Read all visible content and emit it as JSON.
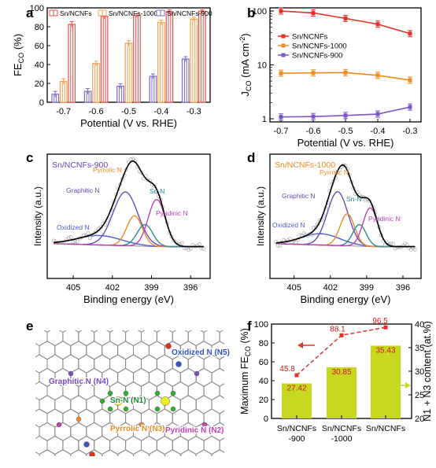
{
  "chart_data": [
    {
      "panel": "a",
      "type": "bar",
      "ylabel": "FE",
      "ylabel_sub": "CO",
      "ylabel_unit": "(%)",
      "xlabel": "Potential (V vs. RHE)",
      "categories": [
        "-0.7",
        "-0.6",
        "-0.5",
        "-0.4",
        "-0.3"
      ],
      "ylim": [
        0,
        100
      ],
      "yticks": [
        "0",
        "20",
        "40",
        "60",
        "80",
        "100"
      ],
      "legend_position": "top",
      "series": [
        {
          "name": "Sn/NCNFs-900",
          "color": "#7b68c8",
          "values": [
            8.5,
            11.5,
            17,
            27.5,
            45.8
          ],
          "errors": [
            3,
            3,
            2.5,
            2.5,
            2.5
          ]
        },
        {
          "name": "Sn/NCNFs-1000",
          "color": "#f0a050",
          "values": [
            22,
            41,
            62.5,
            84.5,
            88.1
          ],
          "errors": [
            3,
            2.5,
            3,
            2.5,
            2
          ]
        },
        {
          "name": "Sn/NCNFs",
          "color": "#e8504a",
          "values": [
            82.5,
            91,
            92,
            96,
            96.5
          ],
          "errors": [
            3,
            2.5,
            2,
            2,
            1.5
          ]
        }
      ]
    },
    {
      "panel": "b",
      "type": "line",
      "ylabel": "J",
      "ylabel_sub": "CO",
      "ylabel_unit": "(mA cm",
      "ylabel_sup": "-2",
      "ylabel_close": ")",
      "xlabel": "Potential (V vs. RHE)",
      "x": [
        -0.7,
        -0.6,
        -0.5,
        -0.4,
        -0.3
      ],
      "xticks": [
        "-0.7",
        "-0.6",
        "-0.5",
        "-0.4",
        "-0.3"
      ],
      "ylim": [
        1,
        100
      ],
      "yscale": "log",
      "yticks": [
        "1",
        "10",
        "100"
      ],
      "legend_position": "middle-left",
      "series": [
        {
          "name": "Sn/NCNFs",
          "color": "#e8302a",
          "values": [
            100,
            92,
            73,
            57,
            38
          ],
          "errors": [
            0.12,
            0.1,
            0.1,
            0.08,
            0.1
          ]
        },
        {
          "name": "Sn/NCNFs-1000",
          "color": "#f08a20",
          "values": [
            7,
            7.1,
            7.2,
            6.4,
            5.2
          ],
          "errors": [
            0.1,
            0.1,
            0.1,
            0.08,
            0.08
          ]
        },
        {
          "name": "Sn/NCNFs-900",
          "color": "#7b55c8",
          "values": [
            1.08,
            1.1,
            1.15,
            1.22,
            1.65
          ],
          "errors": [
            0.05,
            0.05,
            0.05,
            0.06,
            0.07
          ]
        }
      ]
    },
    {
      "panel": "c",
      "type": "line",
      "sample_label": "Sn/NCNFs-900",
      "ylabel": "Intensity (a.u.)",
      "xlabel": "Binding energy (eV)",
      "xlim": [
        407,
        394.5
      ],
      "xticks": [
        "405",
        "402",
        "399",
        "396"
      ],
      "peaks": [
        {
          "name": "Oxidized N",
          "center": 403.0,
          "height": 0.1,
          "width": 1.7,
          "color": "#4a5fd8"
        },
        {
          "name": "Graphitic N",
          "center": 401.0,
          "height": 0.57,
          "width": 0.95,
          "color": "#6a48c0"
        },
        {
          "name": "Pyrrolic N",
          "center": 400.3,
          "height": 0.32,
          "width": 0.6,
          "color": "#f08a20"
        },
        {
          "name": "Sn-N",
          "center": 399.5,
          "height": 0.23,
          "width": 0.6,
          "color": "#2a8a9a"
        },
        {
          "name": "Pyridinic N",
          "center": 398.6,
          "height": 0.5,
          "width": 0.65,
          "color": "#c040b0"
        }
      ]
    },
    {
      "panel": "d",
      "type": "line",
      "sample_label": "Sn/NCNFs-1000",
      "ylabel": "Intensity (a.u.)",
      "xlabel": "Binding energy (eV)",
      "xlim": [
        407,
        394.5
      ],
      "xticks": [
        "405",
        "402",
        "399",
        "396"
      ],
      "peaks": [
        {
          "name": "Oxidized N",
          "center": 402.8,
          "height": 0.12,
          "width": 1.6,
          "color": "#4a5fd8"
        },
        {
          "name": "Graphitic N",
          "center": 401.4,
          "height": 0.57,
          "width": 0.85,
          "color": "#6a48c0"
        },
        {
          "name": "Pyrrolic N",
          "center": 400.6,
          "height": 0.34,
          "width": 0.6,
          "color": "#f08a20"
        },
        {
          "name": "Sn-N",
          "center": 399.6,
          "height": 0.23,
          "width": 0.55,
          "color": "#2a8a9a"
        },
        {
          "name": "Pyridinic N",
          "center": 398.7,
          "height": 0.41,
          "width": 0.6,
          "color": "#c040b0"
        }
      ]
    },
    {
      "panel": "f",
      "type": "bar",
      "ylabel": "Maximum FE",
      "ylabel_sub": "CO",
      "ylabel_unit": "(%)",
      "ylabel_right": "N1 + N3 content (at.%)",
      "categories": [
        [
          "Sn/NCNFs",
          "-900"
        ],
        [
          "Sn/NCNFs",
          "-1000"
        ],
        [
          "Sn/NCNFs"
        ]
      ],
      "ylim": [
        0,
        100
      ],
      "ylim_right": [
        20,
        40
      ],
      "yticks": [
        "0",
        "20",
        "40",
        "60",
        "80",
        "100"
      ],
      "yticks_right": [
        "20",
        "25",
        "30",
        "35",
        "40"
      ],
      "bar_color": "#c8d820",
      "content_values": [
        27.42,
        30.85,
        35.43
      ],
      "content_labels": [
        "27.42",
        "30.85",
        "35.43"
      ],
      "fe_values": [
        45.8,
        88.1,
        96.5
      ],
      "fe_labels": [
        "45.8",
        "88.1",
        "96.5"
      ],
      "line_color": "#e8302a"
    }
  ],
  "panel_labels": [
    "a",
    "b",
    "c",
    "d",
    "e",
    "f"
  ],
  "panel_e": {
    "labels": [
      "Oxidized N (N5)",
      "Graphitic N (N4)",
      "Sn-N (N1)",
      "Pyrrolic N (N3)",
      "Pyridinic N (N2)"
    ],
    "colors": {
      "oxidized": "#3850c8",
      "graphitic": "#7a4ac8",
      "snn": "#1a8a3a",
      "pyrrolic": "#f08a20",
      "pyridinic": "#c840b0",
      "sn_atom": "#f0f020",
      "n_atom": "#2ab02a",
      "o_atom": "#e03020",
      "c_atom": "#b0b0b0"
    }
  }
}
